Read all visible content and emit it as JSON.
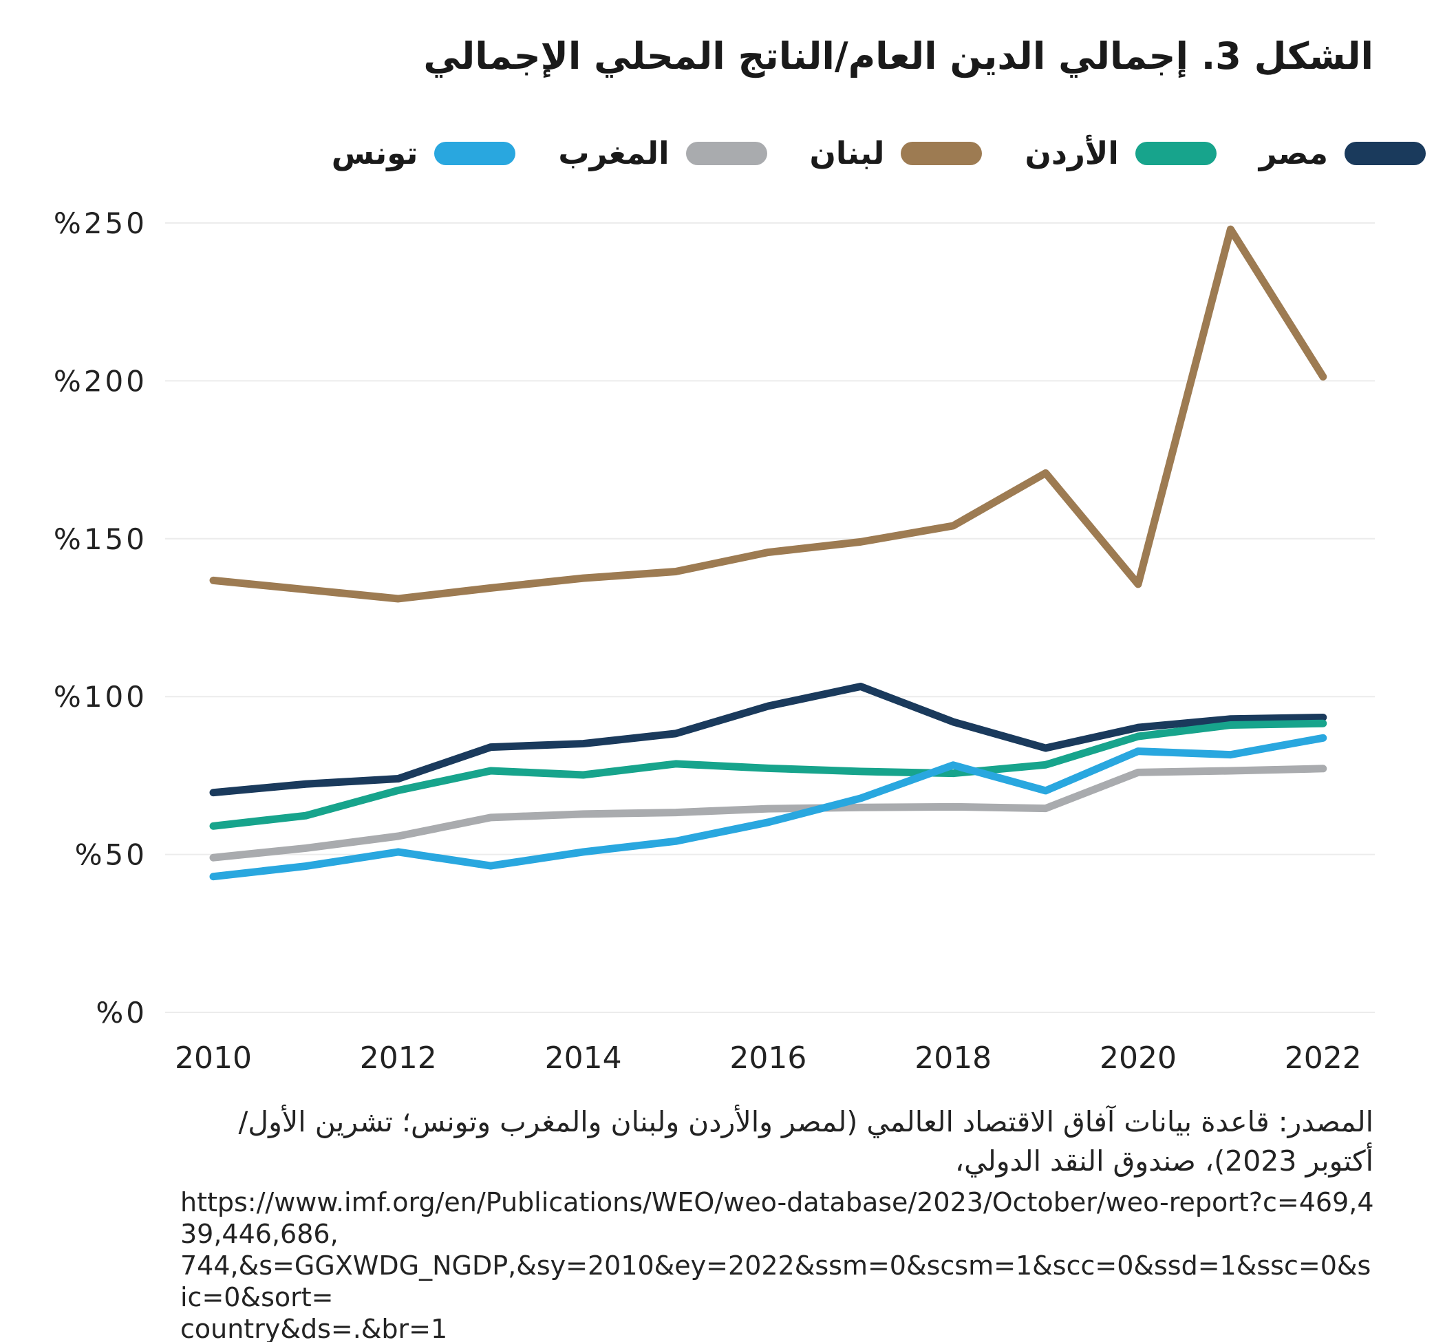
{
  "title": "الشكل 3. إجمالي الدين العام/الناتج المحلي الإجمالي",
  "source": {
    "text": "المصدر: قاعدة بيانات آفاق الاقتصاد العالمي (لمصر والأردن ولبنان والمغرب وتونس؛ تشرين الأول/أكتوبر 2023)، صندوق النقد الدولي،"
  },
  "url_text": "https://www.imf.org/en/Publications/WEO/weo-database/2023/October/weo-report?c=469,439,446,686,\n744,&s=GGXWDG_NGDP,&sy=2010&ey=2022&ssm=0&scsm=1&scc=0&ssd=1&ssc=0&sic=0&sort=\ncountry&ds=.&br=1",
  "colors": {
    "egypt": "#1A3A5C",
    "jordan": "#17A48C",
    "lebanon": "#9D7B52",
    "morocco": "#A9ABAE",
    "tunisia": "#29A7DF",
    "gridline": "#ECECEC",
    "text": "#222222"
  },
  "chart_data": {
    "type": "line",
    "title": "الشكل 3. إجمالي الدين العام/الناتج المحلي الإجمالي",
    "xlabel": "",
    "ylabel": "",
    "ylim": [
      0,
      250
    ],
    "grid": true,
    "legend_position": "top",
    "x": [
      2010,
      2011,
      2012,
      2013,
      2014,
      2015,
      2016,
      2017,
      2018,
      2019,
      2020,
      2021,
      2022
    ],
    "x_tick_labels": [
      "2010",
      "2012",
      "2014",
      "2016",
      "2018",
      "2020",
      "2022"
    ],
    "x_ticks": [
      2010,
      2012,
      2014,
      2016,
      2018,
      2020,
      2022
    ],
    "y_ticks": [
      0,
      50,
      100,
      150,
      200,
      250
    ],
    "y_tick_labels": [
      "%0",
      "%50",
      "%100",
      "%150",
      "%200",
      "%250"
    ],
    "series": [
      {
        "id": "egypt",
        "name": "مصر",
        "color": "#1A3A5C",
        "values": [
          69.6,
          72.3,
          74.0,
          84.0,
          85.1,
          88.3,
          97.0,
          103.2,
          92.0,
          83.7,
          90.2,
          92.9,
          93.4
        ]
      },
      {
        "id": "jordan",
        "name": "الأردن",
        "color": "#17A48C",
        "values": [
          59.0,
          62.3,
          70.3,
          76.5,
          75.2,
          78.7,
          77.3,
          76.3,
          75.7,
          78.4,
          87.4,
          91.0,
          91.5
        ]
      },
      {
        "id": "lebanon",
        "name": "لبنان",
        "color": "#9D7B52",
        "values": [
          136.8,
          133.9,
          131.0,
          134.4,
          137.5,
          139.6,
          145.7,
          149.0,
          154.1,
          170.8,
          135.6,
          248.0,
          201.3
        ]
      },
      {
        "id": "morocco",
        "name": "المغرب",
        "color": "#A9ABAE",
        "values": [
          49.0,
          52.0,
          55.8,
          61.7,
          62.8,
          63.3,
          64.5,
          64.9,
          65.1,
          64.6,
          76.0,
          76.5,
          77.2
        ]
      },
      {
        "id": "tunisia",
        "name": "تونس",
        "color": "#29A7DF",
        "values": [
          43.0,
          46.3,
          50.8,
          46.4,
          50.8,
          54.2,
          60.2,
          67.8,
          78.3,
          70.2,
          82.7,
          81.6,
          86.9
        ]
      }
    ]
  }
}
